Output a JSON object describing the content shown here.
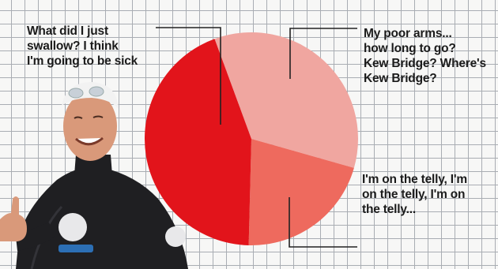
{
  "chart_data": {
    "type": "pie",
    "categories": [
      "What did I just swallow? I think I'm going to be sick",
      "My poor arms... how long to go? Kew Bridge? Where's Kew Bridge?",
      "I'm on the telly, I'm on the telly, I'm on the telly..."
    ],
    "values": [
      44,
      35,
      21
    ],
    "colors": [
      "#e2141b",
      "#f0a6a0",
      "#ee6a5e"
    ],
    "title": "",
    "legend": "none"
  },
  "callouts": [
    "What did I just\nswallow? I think\nI'm going to be sick",
    "My poor arms...\nhow long to go?\nKew Bridge? Where's\nKew Bridge?",
    "I'm on the telly, I'm\non the telly, I'm on\nthe telly..."
  ],
  "colors": {
    "grid": "#a9adb3",
    "background": "#f7f7f6",
    "wetsuit": "#1f1f22",
    "skin": "#d9997a",
    "cap": "#f2f2f2"
  },
  "icons": {
    "person": "swimmer-in-wetsuit-thumbs-up"
  }
}
